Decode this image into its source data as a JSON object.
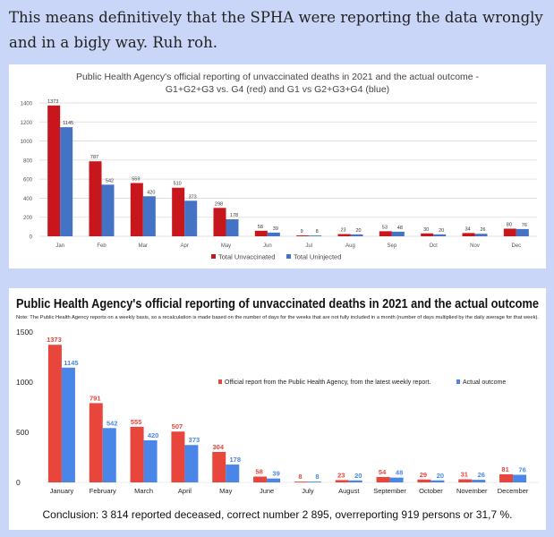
{
  "intro": "This means definitively that the SPHA were reporting the data wrongly and in a bigly way. Ruh roh.",
  "chart_data": [
    {
      "type": "bar",
      "title": "Public Health Agency's official reporting of unvaccinated deaths in 2021 and the actual outcome - G1+G2+G3 vs. G4 (red) and G1 vs G2+G3+G4 (blue)",
      "categories": [
        "Jan",
        "Feb",
        "Mar",
        "Apr",
        "May",
        "Jun",
        "Jul",
        "Aug",
        "Sep",
        "Oct",
        "Nov",
        "Dec"
      ],
      "series": [
        {
          "name": "Total Unvaccinated",
          "color": "#c8161d",
          "values": [
            1373,
            787,
            559,
            510,
            298,
            58,
            9,
            23,
            53,
            30,
            34,
            80
          ]
        },
        {
          "name": "Total Uninjected",
          "color": "#4472c4",
          "values": [
            1145,
            542,
            420,
            373,
            178,
            39,
            8,
            20,
            48,
            20,
            26,
            76
          ]
        }
      ],
      "ylim": [
        0,
        1400
      ],
      "yticks": [
        0,
        200,
        400,
        600,
        800,
        1000,
        1200,
        1400
      ],
      "xlabel": "",
      "ylabel": "",
      "legend": "bottom"
    },
    {
      "type": "bar",
      "title": "Public Health Agency's official reporting of unvaccinated deaths in 2021 and the actual outcome",
      "note": "Note: The Public Health Agency reports on a weekly basis, so a recalculation is made based on the number of days for the weeks that are not fully included in a month (number of days multiplied by the daily average for that week).",
      "categories": [
        "January",
        "February",
        "March",
        "April",
        "May",
        "June",
        "July",
        "August",
        "September",
        "October",
        "November",
        "December"
      ],
      "series": [
        {
          "name": "Official report from the Public Health Agency, from the latest weekly report.",
          "color": "#e8453c",
          "values": [
            1373,
            791,
            555,
            507,
            304,
            58,
            8,
            23,
            54,
            29,
            31,
            81
          ]
        },
        {
          "name": "Actual outcome",
          "color": "#4a86e8",
          "values": [
            1145,
            542,
            420,
            373,
            178,
            39,
            8,
            20,
            48,
            20,
            26,
            76
          ]
        }
      ],
      "ylim": [
        0,
        1500
      ],
      "yticks": [
        0,
        500,
        1000,
        1500
      ],
      "xlabel": "",
      "ylabel": "",
      "legend": "top-right",
      "conclusion": "Conclusion: 3 814 reported deceased, correct number 2 895, overreporting 919 persons or 31,7 %."
    }
  ]
}
